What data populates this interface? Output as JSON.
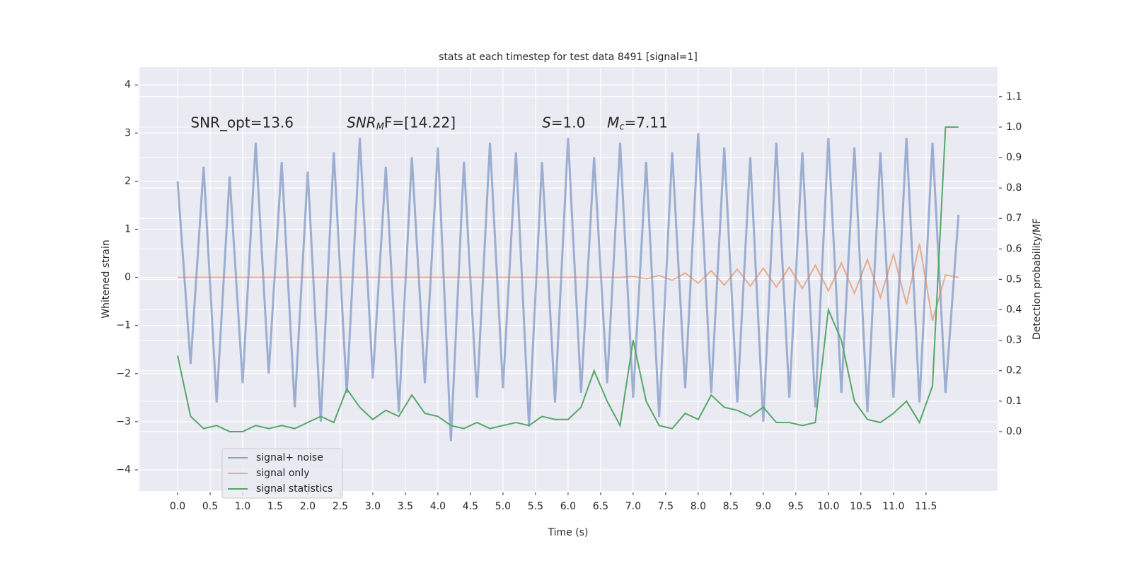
{
  "chart_data": {
    "type": "line",
    "title": "stats at each timestep for test data 8491 [signal=1]",
    "xlabel": "Time (s)",
    "ylabel": "Whitened strain",
    "y2label": "Detection probability/MF",
    "annotations": [
      {
        "text": "SNR_opt=13.6",
        "x": 0.2,
        "y": 3.2
      },
      {
        "text": "SNR",
        "sub": "M",
        "after": "F=[14.22]",
        "x": 2.6,
        "y": 3.2
      },
      {
        "text": "S",
        "after": "=1.0",
        "x": 5.6,
        "y": 3.2
      },
      {
        "text": "M",
        "sub": "c",
        "after": "=7.11",
        "x": 6.6,
        "y": 3.2
      }
    ],
    "x": [
      0.0,
      0.2,
      0.4,
      0.6,
      0.8,
      1.0,
      1.2,
      1.4,
      1.6,
      1.8,
      2.0,
      2.2,
      2.4,
      2.6,
      2.8,
      3.0,
      3.2,
      3.4,
      3.6,
      3.8,
      4.0,
      4.2,
      4.4,
      4.6,
      4.8,
      5.0,
      5.2,
      5.4,
      5.6,
      5.8,
      6.0,
      6.2,
      6.4,
      6.6,
      6.8,
      7.0,
      7.2,
      7.4,
      7.6,
      7.8,
      8.0,
      8.2,
      8.4,
      8.6,
      8.8,
      9.0,
      9.2,
      9.4,
      9.6,
      9.8,
      10.0,
      10.2,
      10.4,
      10.6,
      10.8,
      11.0,
      11.2,
      11.4,
      11.6,
      11.8,
      12.0
    ],
    "series": [
      {
        "name": "signal+ noise",
        "color": "#4c72b0",
        "values": [
          2.0,
          -1.8,
          2.3,
          -2.6,
          2.1,
          -2.2,
          2.8,
          -2.0,
          2.4,
          -2.7,
          2.2,
          -3.0,
          2.6,
          -2.4,
          2.9,
          -2.1,
          2.3,
          -2.8,
          2.5,
          -2.2,
          2.7,
          -3.4,
          2.4,
          -2.5,
          2.8,
          -2.3,
          2.6,
          -3.1,
          2.4,
          -2.6,
          2.9,
          -2.4,
          2.5,
          -2.2,
          2.8,
          -2.5,
          2.4,
          -2.9,
          2.6,
          -2.3,
          3.0,
          -2.4,
          2.7,
          -2.6,
          2.5,
          -3.0,
          2.8,
          -2.5,
          2.6,
          -2.7,
          2.9,
          -2.4,
          2.7,
          -2.8,
          2.6,
          -2.5,
          2.9,
          -2.6,
          2.8,
          -2.4,
          1.3
        ]
      },
      {
        "name": "signal only",
        "color": "#dd8452",
        "values": [
          0,
          0,
          0,
          0,
          0,
          0,
          0,
          0,
          0,
          0,
          0,
          0,
          0,
          0,
          0,
          0,
          0,
          0,
          0,
          0,
          0,
          0,
          0,
          0,
          0,
          0,
          0,
          0,
          0,
          0,
          0,
          0,
          0,
          0,
          0,
          0.02,
          -0.03,
          0.04,
          -0.06,
          0.09,
          -0.12,
          0.14,
          -0.16,
          0.17,
          -0.18,
          0.19,
          -0.2,
          0.21,
          -0.23,
          0.25,
          -0.28,
          0.3,
          -0.33,
          0.37,
          -0.42,
          0.48,
          -0.56,
          0.7,
          -0.9,
          0.05,
          0
        ]
      },
      {
        "name": "signal statistics",
        "color": "#55a868",
        "axis": "y2",
        "values": [
          0.25,
          0.05,
          0.01,
          0.02,
          0.0,
          0.0,
          0.02,
          0.01,
          0.02,
          0.01,
          0.03,
          0.05,
          0.03,
          0.14,
          0.08,
          0.04,
          0.07,
          0.05,
          0.12,
          0.06,
          0.05,
          0.02,
          0.01,
          0.03,
          0.01,
          0.02,
          0.03,
          0.02,
          0.05,
          0.04,
          0.04,
          0.08,
          0.2,
          0.1,
          0.02,
          0.3,
          0.1,
          0.02,
          0.01,
          0.06,
          0.04,
          0.12,
          0.08,
          0.07,
          0.05,
          0.08,
          0.03,
          0.03,
          0.02,
          0.03,
          0.4,
          0.3,
          0.1,
          0.04,
          0.03,
          0.06,
          0.1,
          0.03,
          0.15,
          1.0,
          1.0
        ]
      }
    ],
    "xlim": [
      -0.587,
      12.6
    ],
    "ylim": [
      -4.44,
      4.37
    ],
    "y2lim": [
      -0.195,
      1.197
    ],
    "xticks": [
      {
        "value": 0,
        "label": "0.0"
      },
      0.5,
      {
        "value": 1,
        "label": "1.0"
      },
      1.5,
      {
        "value": 2,
        "label": "2.0"
      },
      2.5,
      {
        "value": 3,
        "label": "3.0"
      },
      3.5,
      {
        "value": 4,
        "label": "4.0"
      },
      4.5,
      {
        "value": 5,
        "label": "5.0"
      },
      5.5,
      {
        "value": 6,
        "label": "6.0"
      },
      6.5,
      {
        "value": 7,
        "label": "7.0"
      },
      7.5,
      {
        "value": 8,
        "label": "8.0"
      },
      8.5,
      {
        "value": 9,
        "label": "9.0"
      },
      9.5,
      {
        "value": 10,
        "label": "10.0"
      },
      10.5,
      {
        "value": 11,
        "label": "11.0"
      },
      11.5
    ],
    "yticks": [
      {
        "value": -4,
        "label": "−4"
      },
      {
        "value": -3,
        "label": "−3"
      },
      {
        "value": -2,
        "label": "−2"
      },
      {
        "value": -1,
        "label": "−1"
      },
      0,
      1,
      2,
      3,
      4
    ],
    "y2ticks": [
      {
        "value": 0,
        "label": "0.0"
      },
      0.1,
      0.2,
      0.3,
      0.4,
      0.5,
      0.6,
      0.7,
      0.8,
      0.9,
      {
        "value": 1,
        "label": "1.0"
      },
      1.1
    ],
    "grid": true,
    "legend": "lower left"
  }
}
